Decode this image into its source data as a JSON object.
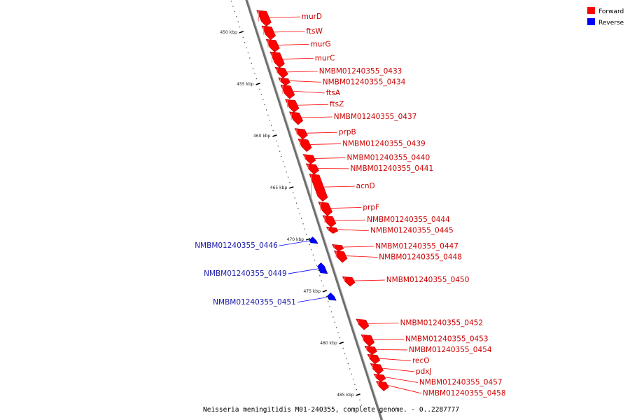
{
  "title": "Neisseria meningitidis M01-240355, complete genome. - 0..2287777",
  "legend": [
    {
      "label": "Forward",
      "color": "#ff0000"
    },
    {
      "label": "Reverse",
      "color": "#0000ff"
    }
  ],
  "colors": {
    "forward": "#ff0000",
    "forward_label": "#cc0000",
    "reverse": "#0000ff",
    "reverse_label": "#1a1aaa",
    "axis": "#8c8c8c"
  },
  "ticks": [
    {
      "kbp": 450,
      "label": "450 kbp"
    },
    {
      "kbp": 455,
      "label": "455 kbp"
    },
    {
      "kbp": 460,
      "label": "460 kbp"
    },
    {
      "kbp": 465,
      "label": "465 kbp"
    },
    {
      "kbp": 470,
      "label": "470 kbp"
    },
    {
      "kbp": 475,
      "label": "475 kbp"
    },
    {
      "kbp": 480,
      "label": "480 kbp"
    },
    {
      "kbp": 485,
      "label": "485 kbp"
    }
  ],
  "genes": [
    {
      "name": "murD",
      "strand": "forward",
      "start": 447.9,
      "end": 449.3
    },
    {
      "name": "ftsW",
      "strand": "forward",
      "start": 449.4,
      "end": 450.6
    },
    {
      "name": "murG",
      "strand": "forward",
      "start": 450.7,
      "end": 451.8
    },
    {
      "name": "murC",
      "strand": "forward",
      "start": 451.9,
      "end": 453.3
    },
    {
      "name": "NMBM01240355_0433",
      "strand": "forward",
      "start": 453.4,
      "end": 454.3
    },
    {
      "name": "NMBM01240355_0434",
      "strand": "forward",
      "start": 454.4,
      "end": 455.0
    },
    {
      "name": "ftsA",
      "strand": "forward",
      "start": 455.1,
      "end": 456.3
    },
    {
      "name": "ftsZ",
      "strand": "forward",
      "start": 456.5,
      "end": 457.6
    },
    {
      "name": "NMBM01240355_0437",
      "strand": "forward",
      "start": 457.7,
      "end": 458.8
    },
    {
      "name": "prpB",
      "strand": "forward",
      "start": 459.3,
      "end": 460.2
    },
    {
      "name": "NMBM01240355_0439",
      "strand": "forward",
      "start": 460.3,
      "end": 461.4
    },
    {
      "name": "NMBM01240355_0440",
      "strand": "forward",
      "start": 461.8,
      "end": 462.6
    },
    {
      "name": "NMBM01240355_0441",
      "strand": "forward",
      "start": 462.7,
      "end": 463.6
    },
    {
      "name": "acnD",
      "strand": "forward",
      "start": 463.7,
      "end": 466.2
    },
    {
      "name": "prpF",
      "strand": "forward",
      "start": 466.4,
      "end": 467.6
    },
    {
      "name": "NMBM01240355_0444",
      "strand": "forward",
      "start": 467.7,
      "end": 468.7
    },
    {
      "name": "NMBM01240355_0445",
      "strand": "forward",
      "start": 468.8,
      "end": 469.3
    },
    {
      "name": "NMBM01240355_0446",
      "strand": "reverse",
      "start": 469.9,
      "end": 470.4
    },
    {
      "name": "NMBM01240355_0447",
      "strand": "forward",
      "start": 470.5,
      "end": 471.0
    },
    {
      "name": "NMBM01240355_0448",
      "strand": "forward",
      "start": 471.1,
      "end": 472.1
    },
    {
      "name": "NMBM01240355_0449",
      "strand": "reverse",
      "start": 472.4,
      "end": 473.3
    },
    {
      "name": "NMBM01240355_0450",
      "strand": "forward",
      "start": 473.6,
      "end": 474.4
    },
    {
      "name": "NMBM01240355_0451",
      "strand": "reverse",
      "start": 475.3,
      "end": 475.9
    },
    {
      "name": "NMBM01240355_0452",
      "strand": "forward",
      "start": 477.7,
      "end": 478.6
    },
    {
      "name": "NMBM01240355_0453",
      "strand": "forward",
      "start": 479.2,
      "end": 480.2
    },
    {
      "name": "NMBM01240355_0454",
      "strand": "forward",
      "start": 480.3,
      "end": 481.0
    },
    {
      "name": "recO",
      "strand": "forward",
      "start": 481.1,
      "end": 481.9
    },
    {
      "name": "pdxJ",
      "strand": "forward",
      "start": 482.0,
      "end": 482.9
    },
    {
      "name": "NMBM01240355_0457",
      "strand": "forward",
      "start": 483.0,
      "end": 483.6
    },
    {
      "name": "NMBM01240355_0458",
      "strand": "forward",
      "start": 483.7,
      "end": 484.5
    }
  ]
}
